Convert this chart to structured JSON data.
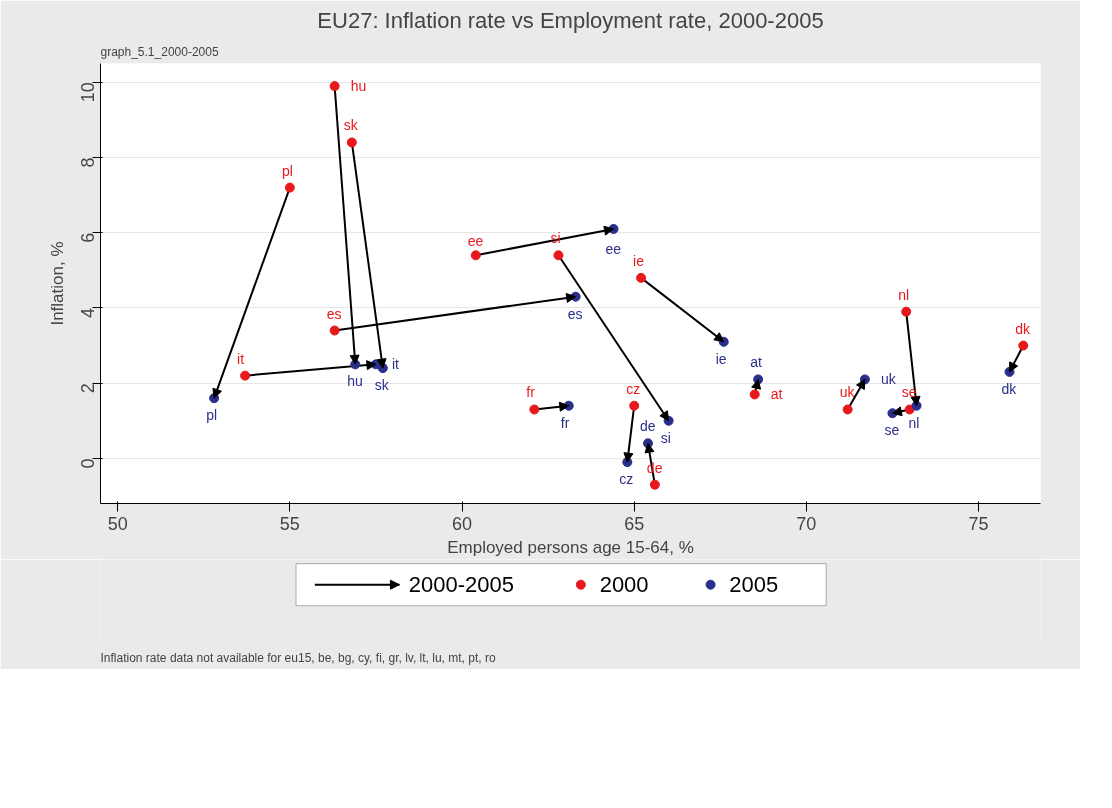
{
  "chart_data": {
    "type": "scatter",
    "title": "EU27: Inflation rate vs Employment rate, 2000-2005",
    "subtitle": "graph_5.1_2000-2005",
    "xlabel": "Employed persons age 15-64, %",
    "ylabel": "Inflation, %",
    "xlim": [
      49.5,
      76.8
    ],
    "ylim": [
      -1.2,
      10.5
    ],
    "xticks": [
      50,
      55,
      60,
      65,
      70,
      75
    ],
    "yticks": [
      0,
      2,
      4,
      6,
      8,
      10
    ],
    "grid": "y",
    "legend": "bottom",
    "marker": "circle",
    "series": [
      {
        "name": "2000-2005",
        "type": "other",
        "color": "#000000"
      },
      {
        "name": "2000",
        "color": "#e8191c",
        "x": [
          55.0,
          56.3,
          56.8,
          53.7,
          56.3,
          60.4,
          62.8,
          65.2,
          62.1,
          65.0,
          65.6,
          68.5,
          71.2,
          72.9,
          73.0,
          76.3
        ],
        "values": [
          7.2,
          9.9,
          8.4,
          2.2,
          3.4,
          5.4,
          5.4,
          4.8,
          1.3,
          1.4,
          -0.7,
          1.7,
          1.3,
          3.9,
          1.3,
          3.0
        ]
      },
      {
        "name": "2005",
        "color": "#2a2f8c",
        "x": [
          52.8,
          56.9,
          57.7,
          57.5,
          63.3,
          64.4,
          66.0,
          67.6,
          63.1,
          64.8,
          65.4,
          68.6,
          71.7,
          73.2,
          72.5,
          75.9
        ],
        "values": [
          1.6,
          2.5,
          2.4,
          2.5,
          4.3,
          6.1,
          1.0,
          3.1,
          1.4,
          -0.1,
          0.4,
          2.1,
          2.1,
          1.4,
          1.2,
          2.3
        ]
      }
    ],
    "annotations": [
      {
        "text": "pl",
        "x": 55.0,
        "y": 7.2
      },
      {
        "text": "hu",
        "x": 56.3,
        "y": 9.9
      },
      {
        "text": "sk",
        "x": 56.8,
        "y": 8.4
      },
      {
        "text": "it",
        "x": 53.7,
        "y": 2.2
      },
      {
        "text": "es",
        "x": 56.3,
        "y": 3.4
      },
      {
        "text": "ee",
        "x": 60.4,
        "y": 5.4
      },
      {
        "text": "si",
        "x": 62.8,
        "y": 5.4
      },
      {
        "text": "ie",
        "x": 65.2,
        "y": 4.8
      },
      {
        "text": "fr",
        "x": 62.1,
        "y": 1.3
      },
      {
        "text": "cz",
        "x": 65.0,
        "y": 1.4
      },
      {
        "text": "de",
        "x": 65.6,
        "y": -0.7
      },
      {
        "text": "at",
        "x": 68.5,
        "y": 1.7
      },
      {
        "text": "uk",
        "x": 71.2,
        "y": 1.3
      },
      {
        "text": "nl",
        "x": 72.9,
        "y": 3.9
      },
      {
        "text": "se",
        "x": 73.0,
        "y": 1.3
      },
      {
        "text": "dk",
        "x": 76.3,
        "y": 3.0
      },
      {
        "text": "pl",
        "x": 52.8,
        "y": 1.6
      },
      {
        "text": "hu",
        "x": 56.9,
        "y": 2.5
      },
      {
        "text": "sk",
        "x": 57.7,
        "y": 2.4
      },
      {
        "text": "it",
        "x": 57.5,
        "y": 2.5
      },
      {
        "text": "es",
        "x": 63.3,
        "y": 4.3
      },
      {
        "text": "ee",
        "x": 64.4,
        "y": 6.1
      },
      {
        "text": "si",
        "x": 66.0,
        "y": 1.0
      },
      {
        "text": "ie",
        "x": 67.6,
        "y": 3.1
      },
      {
        "text": "fr",
        "x": 63.1,
        "y": 1.4
      },
      {
        "text": "cz",
        "x": 64.8,
        "y": -0.1
      },
      {
        "text": "de",
        "x": 65.4,
        "y": 0.4
      },
      {
        "text": "at",
        "x": 68.6,
        "y": 2.1
      },
      {
        "text": "uk",
        "x": 71.7,
        "y": 2.1
      },
      {
        "text": "nl",
        "x": 73.2,
        "y": 1.4
      },
      {
        "text": "se",
        "x": 72.5,
        "y": 1.2
      },
      {
        "text": "dk",
        "x": 75.9,
        "y": 2.3
      },
      "Inflation rate data not available for eu15, be, bg, cy, fi, gr, lv, lt, lu, mt, pt, ro"
    ]
  }
}
